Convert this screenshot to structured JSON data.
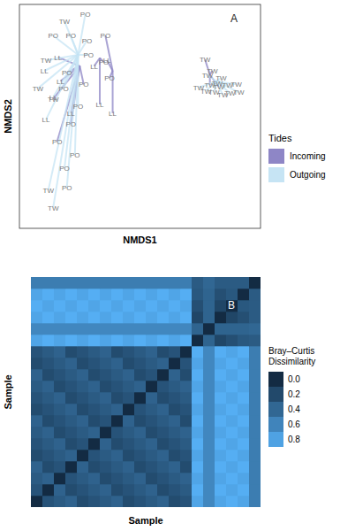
{
  "chart_data": [
    {
      "type": "scatter",
      "annotation": "A",
      "x_label": "NMDS1",
      "y_label": "NMDS2",
      "xlim": [
        -1.5,
        1.5
      ],
      "ylim": [
        -1.4,
        1.4
      ],
      "tick_labels": false,
      "legend": "right",
      "legend_title": "Tides",
      "series": [
        {
          "name": "Incoming",
          "color": "#8e86c6",
          "center": [
            -0.75,
            0.63
          ],
          "x": [
            -1.02,
            -0.91,
            -0.99,
            -1.08,
            -0.7,
            -0.86,
            -1.03,
            -0.86
          ],
          "values": [
            0.74,
            0.55,
            0.44,
            0.22,
            0.4,
            -0.09,
            -0.31,
            0.04
          ],
          "labels": [
            "LL",
            "PO",
            "LL",
            "TW",
            "PO",
            "PO",
            "PO",
            "LL"
          ]
        },
        {
          "name": "Incoming",
          "color": "#8e86c6",
          "center": [
            -0.5,
            0.73
          ],
          "x": [
            -0.5,
            -0.45,
            -0.57
          ],
          "values": [
            0.15,
            0.68,
            0.63
          ],
          "labels": [
            "LL",
            "PO",
            "LL"
          ]
        },
        {
          "name": "Incoming",
          "color": "#8e86c6",
          "center": [
            -0.34,
            0.57
          ],
          "x": [
            -0.34,
            -0.38,
            -0.41,
            -0.43
          ],
          "values": [
            0.04,
            0.48,
            0.7,
            1.01
          ],
          "labels": [
            "LL",
            "PO",
            "LL",
            "PO"
          ]
        },
        {
          "name": "Incoming",
          "color": "#8e86c6",
          "center": [
            0.87,
            0.52
          ],
          "x": [
            0.81,
            0.9,
            0.87,
            0.98
          ],
          "values": [
            0.71,
            0.57,
            0.39,
            0.37
          ],
          "labels": [
            "TW",
            "TW",
            "TW",
            "TW"
          ]
        },
        {
          "name": "Outgoing",
          "color": "#c6e4f4",
          "center": [
            -0.77,
            0.77
          ],
          "x": [
            -0.94,
            -0.68,
            -1.08,
            -0.86,
            -0.66,
            -1.17,
            -0.64,
            -1.19,
            -1.27,
            -0.95,
            -1.08,
            -0.77,
            -1.14,
            -0.91,
            -1.08,
            -0.94,
            -0.81,
            -1.17
          ],
          "values": [
            1.19,
            1.28,
            1.01,
            1.01,
            0.95,
            0.7,
            0.77,
            0.57,
            0.35,
            0.35,
            0.24,
            0.13,
            -0.92,
            -0.89,
            -1.14,
            -0.65,
            -0.48,
            -0.04
          ],
          "labels": [
            "TW",
            "PO",
            "PO",
            "PO",
            "PO",
            "TW",
            "PO",
            "LL",
            "TW",
            "PO",
            "LL",
            "PO",
            "TW",
            "PO",
            "TW",
            "PO",
            "PO",
            "LL"
          ]
        },
        {
          "name": "Outgoing",
          "color": "#c6e4f4",
          "center": [
            0.95,
            0.44
          ],
          "x": [
            0.73,
            0.82,
            0.92,
            1.03,
            1.09,
            1.2,
            1.12,
            0.84,
            1.01,
            1.23,
            0.96
          ],
          "values": [
            0.36,
            0.32,
            0.3,
            0.27,
            0.39,
            0.4,
            0.29,
            0.52,
            0.48,
            0.3,
            0.42
          ],
          "labels": [
            "TW",
            "TW",
            "TW",
            "TW",
            "TW",
            "TW",
            "TW",
            "TW",
            "TW",
            "TW",
            "TW"
          ]
        }
      ]
    },
    {
      "type": "heatmap",
      "annotation": "B",
      "x_label": "Sample",
      "y_label": "Sample",
      "tick_labels": false,
      "legend": "right",
      "legend_title": "Bray–Curtis Dissimilarity",
      "colorbar": {
        "range": [
          0,
          0.9
        ],
        "colors": [
          "#132b43",
          "#56b1f7"
        ],
        "ticks": [
          {
            "value": 0,
            "label": "0.0"
          },
          0.2,
          0.4,
          0.6,
          0.8
        ]
      },
      "cells": [
        [
          0,
          0.27,
          0.32,
          0.37,
          0.22,
          0.27,
          0.32,
          0.37,
          0.22,
          0.27,
          0.32,
          0.37,
          0.22,
          0.27,
          0.82,
          0.62,
          0.82,
          0.88,
          0.82,
          0.55
        ],
        [
          0.27,
          0,
          0.37,
          0.22,
          0.27,
          0.32,
          0.37,
          0.22,
          0.27,
          0.32,
          0.37,
          0.22,
          0.27,
          0.32,
          0.88,
          0.62,
          0.88,
          0.82,
          0.88,
          0.55
        ],
        [
          0.32,
          0.37,
          0,
          0.27,
          0.32,
          0.37,
          0.22,
          0.27,
          0.32,
          0.37,
          0.22,
          0.27,
          0.32,
          0.37,
          0.82,
          0.62,
          0.82,
          0.88,
          0.82,
          0.55
        ],
        [
          0.37,
          0.22,
          0.27,
          0,
          0.37,
          0.22,
          0.27,
          0.32,
          0.37,
          0.22,
          0.27,
          0.32,
          0.37,
          0.22,
          0.88,
          0.62,
          0.88,
          0.82,
          0.88,
          0.55
        ],
        [
          0.22,
          0.27,
          0.32,
          0.37,
          0,
          0.27,
          0.32,
          0.37,
          0.22,
          0.27,
          0.32,
          0.37,
          0.22,
          0.27,
          0.82,
          0.62,
          0.82,
          0.88,
          0.82,
          0.55
        ],
        [
          0.27,
          0.32,
          0.37,
          0.22,
          0.27,
          0,
          0.37,
          0.22,
          0.27,
          0.32,
          0.37,
          0.22,
          0.27,
          0.32,
          0.88,
          0.62,
          0.88,
          0.82,
          0.88,
          0.55
        ],
        [
          0.32,
          0.37,
          0.22,
          0.27,
          0.32,
          0.37,
          0,
          0.27,
          0.32,
          0.37,
          0.22,
          0.27,
          0.32,
          0.37,
          0.82,
          0.62,
          0.82,
          0.88,
          0.82,
          0.55
        ],
        [
          0.37,
          0.22,
          0.27,
          0.32,
          0.37,
          0.22,
          0.27,
          0,
          0.37,
          0.22,
          0.27,
          0.32,
          0.37,
          0.22,
          0.88,
          0.62,
          0.88,
          0.82,
          0.88,
          0.55
        ],
        [
          0.22,
          0.27,
          0.32,
          0.37,
          0.22,
          0.27,
          0.32,
          0.37,
          0,
          0.27,
          0.32,
          0.37,
          0.22,
          0.27,
          0.82,
          0.62,
          0.82,
          0.88,
          0.82,
          0.55
        ],
        [
          0.27,
          0.32,
          0.37,
          0.22,
          0.27,
          0.32,
          0.37,
          0.22,
          0.27,
          0,
          0.37,
          0.22,
          0.27,
          0.32,
          0.88,
          0.62,
          0.88,
          0.82,
          0.88,
          0.55
        ],
        [
          0.32,
          0.37,
          0.22,
          0.27,
          0.32,
          0.37,
          0.22,
          0.27,
          0.32,
          0.37,
          0,
          0.27,
          0.32,
          0.37,
          0.82,
          0.62,
          0.82,
          0.88,
          0.82,
          0.55
        ],
        [
          0.37,
          0.22,
          0.27,
          0.32,
          0.37,
          0.22,
          0.27,
          0.32,
          0.37,
          0.22,
          0.27,
          0,
          0.37,
          0.22,
          0.88,
          0.62,
          0.88,
          0.82,
          0.88,
          0.55
        ],
        [
          0.22,
          0.27,
          0.32,
          0.37,
          0.22,
          0.27,
          0.32,
          0.37,
          0.22,
          0.27,
          0.32,
          0.37,
          0,
          0.27,
          0.82,
          0.62,
          0.82,
          0.88,
          0.82,
          0.55
        ],
        [
          0.27,
          0.32,
          0.37,
          0.22,
          0.27,
          0.32,
          0.37,
          0.22,
          0.27,
          0.32,
          0.37,
          0.22,
          0.27,
          0,
          0.88,
          0.62,
          0.88,
          0.82,
          0.88,
          0.55
        ],
        [
          0.82,
          0.88,
          0.82,
          0.88,
          0.82,
          0.88,
          0.82,
          0.88,
          0.82,
          0.88,
          0.82,
          0.88,
          0.82,
          0.88,
          0,
          0.38,
          0.18,
          0.24,
          0.3,
          0.32
        ],
        [
          0.62,
          0.62,
          0.62,
          0.62,
          0.62,
          0.62,
          0.62,
          0.62,
          0.62,
          0.62,
          0.62,
          0.62,
          0.62,
          0.62,
          0.38,
          0,
          0.38,
          0.38,
          0.38,
          0.4
        ],
        [
          0.82,
          0.88,
          0.82,
          0.88,
          0.82,
          0.88,
          0.82,
          0.88,
          0.82,
          0.88,
          0.82,
          0.88,
          0.82,
          0.88,
          0.18,
          0.38,
          0,
          0.18,
          0.24,
          0.32
        ],
        [
          0.88,
          0.82,
          0.88,
          0.82,
          0.88,
          0.82,
          0.88,
          0.82,
          0.88,
          0.82,
          0.88,
          0.82,
          0.88,
          0.82,
          0.24,
          0.38,
          0.18,
          0,
          0.3,
          0.32
        ],
        [
          0.82,
          0.88,
          0.82,
          0.88,
          0.82,
          0.88,
          0.82,
          0.88,
          0.82,
          0.88,
          0.82,
          0.88,
          0.82,
          0.88,
          0.3,
          0.38,
          0.24,
          0.3,
          0,
          0.32
        ],
        [
          0.55,
          0.55,
          0.55,
          0.55,
          0.55,
          0.55,
          0.55,
          0.55,
          0.55,
          0.55,
          0.55,
          0.55,
          0.55,
          0.55,
          0.32,
          0.4,
          0.32,
          0.32,
          0.32,
          0
        ]
      ]
    }
  ]
}
